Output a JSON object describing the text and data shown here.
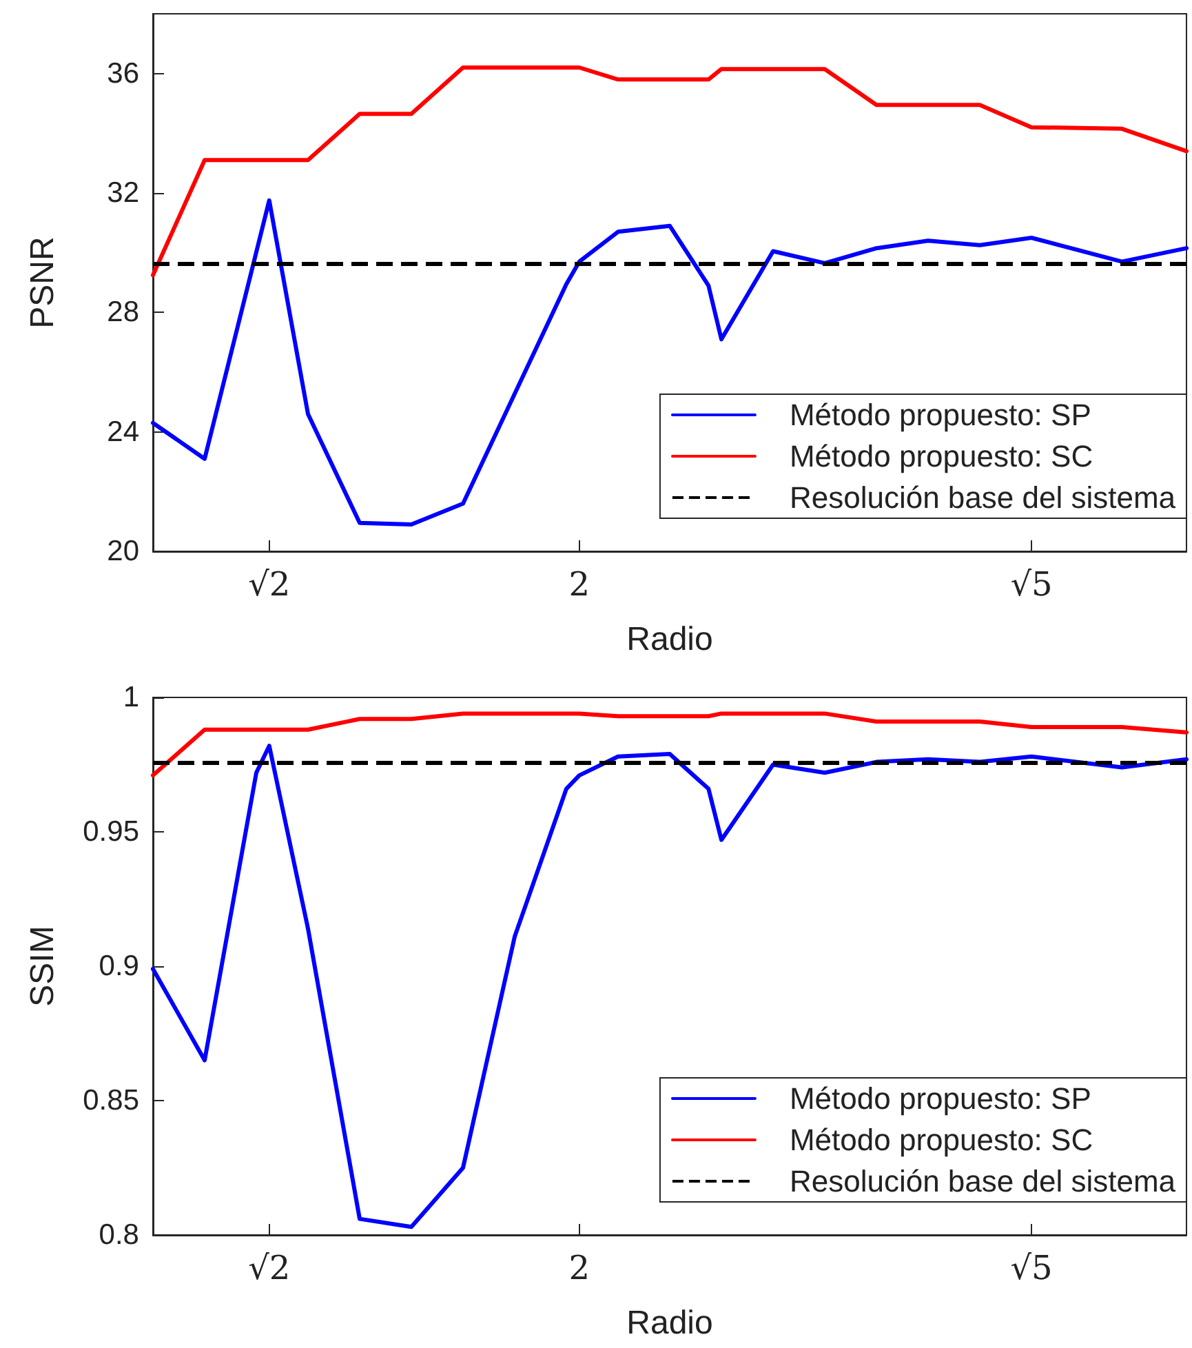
{
  "chart_data": [
    {
      "type": "line",
      "xlabel": "Radio",
      "ylabel": "PSNR",
      "categories": [
        null,
        null,
        null,
        null,
        null,
        null,
        null,
        null,
        null,
        "√2",
        null,
        null,
        null,
        null,
        null,
        null,
        null,
        null,
        null,
        null,
        null,
        null,
        null,
        null,
        null,
        null,
        null,
        null,
        null,
        null,
        null,
        null,
        null,
        "2",
        null,
        null,
        null,
        null,
        null,
        null,
        null,
        null,
        null,
        null,
        null,
        null,
        null,
        null,
        null,
        null,
        null,
        null,
        null,
        null,
        null,
        null,
        null,
        null,
        null,
        null,
        null,
        null,
        null,
        null,
        null,
        null,
        null,
        null,
        "√5",
        null,
        null,
        null,
        null,
        null,
        null,
        null,
        null,
        null,
        null,
        null,
        null
      ],
      "series": [
        {
          "name": "Método propuesto: SP",
          "color": "#0000ff",
          "values": [
            24.3,
            null,
            null,
            null,
            23.1,
            null,
            null,
            null,
            null,
            31.75,
            null,
            null,
            24.6,
            null,
            null,
            null,
            20.95,
            null,
            null,
            null,
            20.9,
            null,
            null,
            null,
            21.6,
            null,
            null,
            null,
            null,
            null,
            null,
            null,
            28.95,
            29.7,
            null,
            null,
            30.7,
            null,
            null,
            null,
            30.9,
            null,
            null,
            28.9,
            27.1,
            null,
            null,
            null,
            30.05,
            null,
            null,
            null,
            29.65,
            null,
            null,
            null,
            30.15,
            null,
            null,
            null,
            30.4,
            null,
            null,
            null,
            30.25,
            null,
            null,
            null,
            30.5,
            null,
            null,
            null,
            null,
            null,
            null,
            29.7,
            null,
            null,
            null,
            null,
            30.15
          ]
        },
        {
          "name": "Método propuesto: SC",
          "color": "#ff0000",
          "values": [
            29.25,
            null,
            null,
            null,
            33.1,
            null,
            null,
            null,
            null,
            null,
            null,
            null,
            33.1,
            null,
            null,
            null,
            34.65,
            null,
            null,
            null,
            34.65,
            null,
            null,
            null,
            36.2,
            null,
            null,
            null,
            null,
            null,
            null,
            null,
            null,
            36.2,
            null,
            null,
            35.8,
            null,
            null,
            null,
            null,
            null,
            null,
            35.8,
            36.15,
            null,
            null,
            null,
            null,
            null,
            null,
            null,
            36.15,
            null,
            null,
            null,
            34.95,
            null,
            null,
            null,
            null,
            null,
            null,
            null,
            34.95,
            null,
            null,
            null,
            34.2,
            null,
            null,
            null,
            null,
            null,
            null,
            34.15,
            null,
            null,
            null,
            null,
            33.4
          ]
        }
      ],
      "ref_lines": [
        {
          "axis": "y",
          "value": 29.65,
          "label": "Resolución base del sistema",
          "color": "#000000",
          "line_style": "dashed"
        }
      ],
      "ylim": [
        20,
        38
      ],
      "yticks": [
        20,
        24,
        28,
        32,
        36
      ],
      "grid": false,
      "legend": "bottom right",
      "marker": "none",
      "line_style": "solid"
    },
    {
      "type": "line",
      "xlabel": "Radio",
      "ylabel": "SSIM",
      "categories": [
        null,
        null,
        null,
        null,
        null,
        null,
        null,
        null,
        null,
        "√2",
        null,
        null,
        null,
        null,
        null,
        null,
        null,
        null,
        null,
        null,
        null,
        null,
        null,
        null,
        null,
        null,
        null,
        null,
        null,
        null,
        null,
        null,
        null,
        "2",
        null,
        null,
        null,
        null,
        null,
        null,
        null,
        null,
        null,
        null,
        null,
        null,
        null,
        null,
        null,
        null,
        null,
        null,
        null,
        null,
        null,
        null,
        null,
        null,
        null,
        null,
        null,
        null,
        null,
        null,
        null,
        null,
        null,
        null,
        "√5",
        null,
        null,
        null,
        null,
        null,
        null,
        null,
        null,
        null,
        null,
        null,
        null
      ],
      "series": [
        {
          "name": "Método propuesto: SP",
          "color": "#0000ff",
          "values": [
            0.899,
            null,
            null,
            null,
            0.865,
            null,
            null,
            null,
            0.972,
            0.982,
            null,
            null,
            0.914,
            null,
            null,
            null,
            0.806,
            null,
            null,
            null,
            0.803,
            null,
            null,
            null,
            0.825,
            null,
            null,
            null,
            0.911,
            null,
            null,
            null,
            0.966,
            0.971,
            null,
            null,
            0.978,
            null,
            null,
            null,
            0.979,
            null,
            null,
            0.966,
            0.947,
            null,
            null,
            null,
            0.975,
            null,
            null,
            null,
            0.972,
            null,
            null,
            null,
            0.976,
            null,
            null,
            null,
            0.977,
            null,
            null,
            null,
            0.976,
            null,
            null,
            null,
            0.978,
            null,
            null,
            null,
            null,
            null,
            null,
            0.974,
            null,
            null,
            null,
            null,
            0.977
          ]
        },
        {
          "name": "Método propuesto: SC",
          "color": "#ff0000",
          "values": [
            0.971,
            null,
            null,
            null,
            0.988,
            null,
            null,
            null,
            null,
            null,
            null,
            null,
            0.988,
            null,
            null,
            null,
            0.992,
            null,
            null,
            null,
            0.992,
            null,
            null,
            null,
            0.994,
            null,
            null,
            null,
            null,
            null,
            null,
            null,
            null,
            0.994,
            null,
            null,
            0.993,
            null,
            null,
            null,
            null,
            null,
            null,
            0.993,
            0.994,
            null,
            null,
            null,
            null,
            null,
            null,
            null,
            0.994,
            null,
            null,
            null,
            0.991,
            null,
            null,
            null,
            null,
            null,
            null,
            null,
            0.991,
            null,
            null,
            null,
            0.989,
            null,
            null,
            null,
            null,
            null,
            null,
            0.989,
            null,
            null,
            null,
            null,
            0.987
          ]
        }
      ],
      "ref_lines": [
        {
          "axis": "y",
          "value": 0.976,
          "label": "Resolución base del sistema",
          "color": "#000000",
          "line_style": "dashed"
        }
      ],
      "ylim": [
        0.8,
        1
      ],
      "yticks": [
        0.8,
        0.85,
        0.9,
        0.95,
        1
      ],
      "grid": false,
      "legend": "bottom right",
      "marker": "none",
      "line_style": "solid"
    }
  ]
}
